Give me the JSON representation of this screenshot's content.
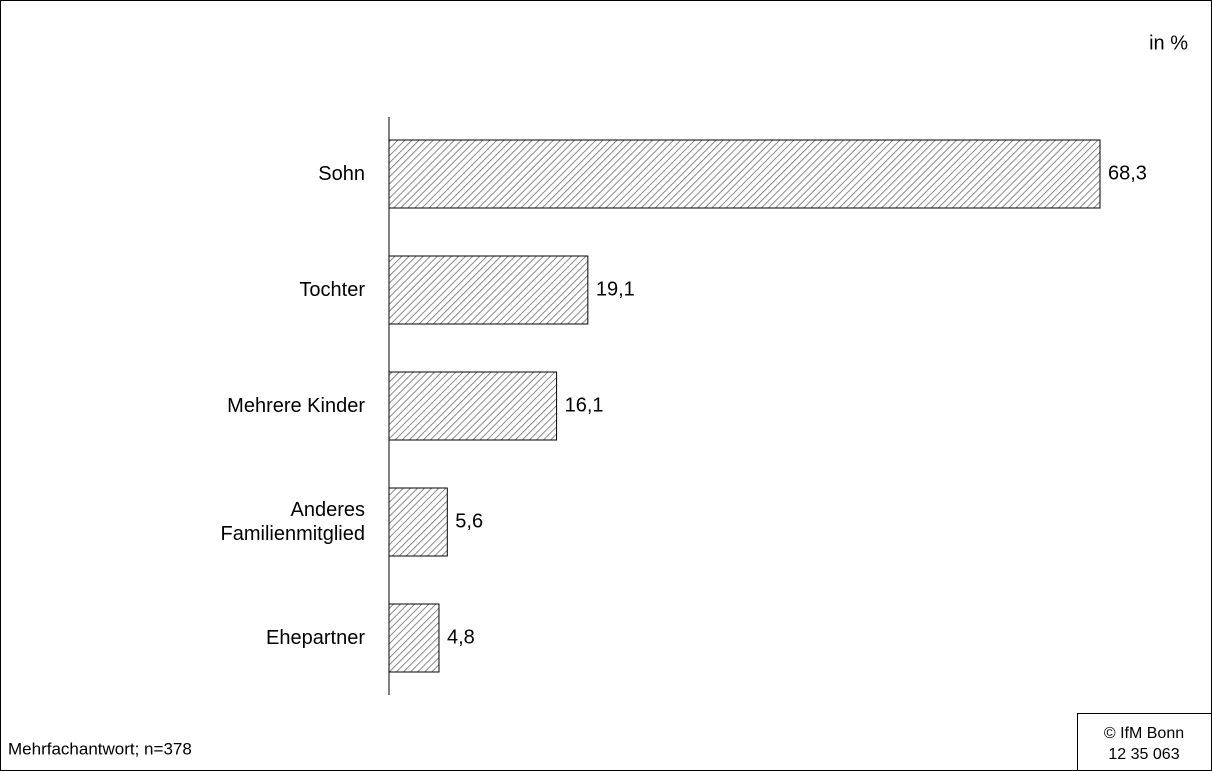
{
  "chart_data": {
    "type": "barh",
    "unit_label": "in %",
    "categories": [
      "Sohn",
      "Tochter",
      "Mehrere Kinder",
      "Anderes Familienmitglied",
      "Ehepartner"
    ],
    "values": [
      68.3,
      19.1,
      16.1,
      5.6,
      4.8
    ],
    "value_labels": [
      "68,3",
      "19,1",
      "16,1",
      "5,6",
      "4,8"
    ],
    "color": "#6e6e6e",
    "note": "Mehrfachantwort; n=378",
    "source": [
      "© IfM Bonn",
      "12 35 063"
    ]
  }
}
